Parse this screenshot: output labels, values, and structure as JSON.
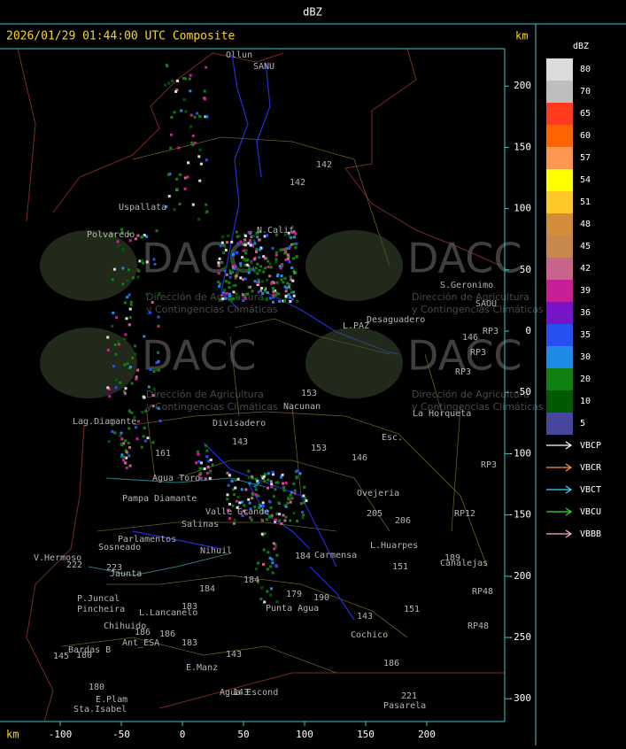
{
  "header": {
    "title": "dBZ"
  },
  "map": {
    "timestamp": "2026/01/29 01:44:00 UTC Composite",
    "axis_unit": "km",
    "xticks": [
      -100,
      -50,
      0,
      50,
      100,
      150,
      200
    ],
    "yticks": [
      200,
      150,
      100,
      50,
      0,
      -50,
      -100,
      -150,
      -200,
      -250,
      -300
    ],
    "watermark": {
      "name": "DACC",
      "line1": "Dirección de Agricultura",
      "line2": "y Contingencias Climáticas"
    },
    "places": [
      "Ollun",
      "SANU",
      "142",
      "142",
      "Uspallata",
      "Polvaredo",
      "N.Calif",
      "S.Geronimo",
      "SAOU",
      "Desaguadero",
      "L.PAZ",
      "RP3",
      "146",
      "RP3",
      "RP3",
      "153",
      "Nacunan",
      "La Horqueta",
      "Lag.Diamante",
      "Divisadero",
      "Esc.",
      "143",
      "153",
      "146",
      "161",
      "Agua Toro",
      "RP3",
      "Pampa Diamante",
      "Ovejeria",
      "205",
      "206",
      "RP12",
      "Valle Grande",
      "Salinas",
      "Parlamentos",
      "Sosneado",
      "Nihuil",
      "L.Huarpes",
      "184",
      "Carmensa",
      "151",
      "189",
      "Canalejas",
      "V.Hermoso",
      "222",
      "223",
      "Jaunta",
      "184",
      "184",
      "179",
      "190",
      "P.Juncal",
      "Pincheira",
      "L.Lancanelo",
      "Punta Agua",
      "183",
      "143",
      "151",
      "RP48",
      "RP48",
      "Chihuido",
      "Cochico",
      "186",
      "186",
      "Ant_ESA",
      "183",
      "145",
      "Bardas B",
      "180",
      "143",
      "186",
      "E.Manz",
      "180",
      "Agua Escond",
      "143",
      "221",
      "E.Plam",
      "Sta.Isabel",
      "Pasarela"
    ]
  },
  "legend": {
    "title": "dBZ",
    "levels": [
      {
        "value": 80,
        "color": "#dcdcdc"
      },
      {
        "value": 70,
        "color": "#bebebe"
      },
      {
        "value": 65,
        "color": "#ff3a1e"
      },
      {
        "value": 60,
        "color": "#ff6400"
      },
      {
        "value": 57,
        "color": "#ff9650"
      },
      {
        "value": 54,
        "color": "#ffff00"
      },
      {
        "value": 51,
        "color": "#ffc828"
      },
      {
        "value": 48,
        "color": "#d28c3c"
      },
      {
        "value": 45,
        "color": "#c8874b"
      },
      {
        "value": 42,
        "color": "#c8648c"
      },
      {
        "value": 39,
        "color": "#c81e96"
      },
      {
        "value": 36,
        "color": "#7814c8"
      },
      {
        "value": 35,
        "color": "#2850f0"
      },
      {
        "value": 30,
        "color": "#1e8ce6"
      },
      {
        "value": 20,
        "color": "#108010"
      },
      {
        "value": 10,
        "color": "#005a00"
      },
      {
        "value": 5,
        "color": "#46469a"
      }
    ],
    "radars": [
      {
        "name": "VBCP",
        "color": "#ffffff"
      },
      {
        "name": "VBCR",
        "color": "#ff9640"
      },
      {
        "name": "VBCT",
        "color": "#40d8ff"
      },
      {
        "name": "VBCU",
        "color": "#30e030"
      },
      {
        "name": "VBBB",
        "color": "#ffb4c8"
      }
    ]
  }
}
